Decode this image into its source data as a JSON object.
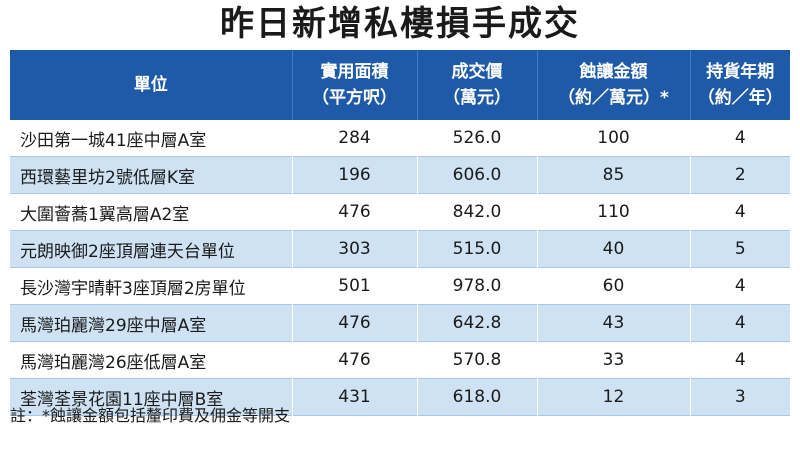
{
  "title": "昨日新增私樓損手成交",
  "headers": [
    {
      "line1": "單位",
      "line2": ""
    },
    {
      "line1": "實用面積",
      "line2": "（平方呎）"
    },
    {
      "line1": "成交價",
      "line2": "（萬元）"
    },
    {
      "line1": "蝕讓金額",
      "line2": "（約／萬元）*"
    },
    {
      "line1": "持貨年期",
      "line2": "（約／年）"
    }
  ],
  "rows": [
    [
      "沙田第一城41座中層A室",
      "284",
      "526.0",
      "100",
      "4"
    ],
    [
      "西環藝里坊2號低層K室",
      "196",
      "606.0",
      "85",
      "2"
    ],
    [
      "大圍薈蕎1翼高層A2室",
      "476",
      "842.0",
      "110",
      "4"
    ],
    [
      "元朗映御2座頂層連天台單位",
      "303",
      "515.0",
      "40",
      "5"
    ],
    [
      "長沙灣宇晴軒3座頂層2房單位",
      "501",
      "978.0",
      "60",
      "4"
    ],
    [
      "馬灣珀麗灣29座中層A室",
      "476",
      "642.8",
      "43",
      "4"
    ],
    [
      "馬灣珀麗灣26座低層A室",
      "476",
      "570.8",
      "33",
      "4"
    ],
    [
      "荃灣荃景花園11座中層B室",
      "431",
      "618.0",
      "12",
      "3"
    ]
  ],
  "note": "註：*蝕讓金額包括釐印費及佣金等開支",
  "colors": {
    "header_bg": "#1f5aa8",
    "stripe": "#cfe2f4"
  }
}
